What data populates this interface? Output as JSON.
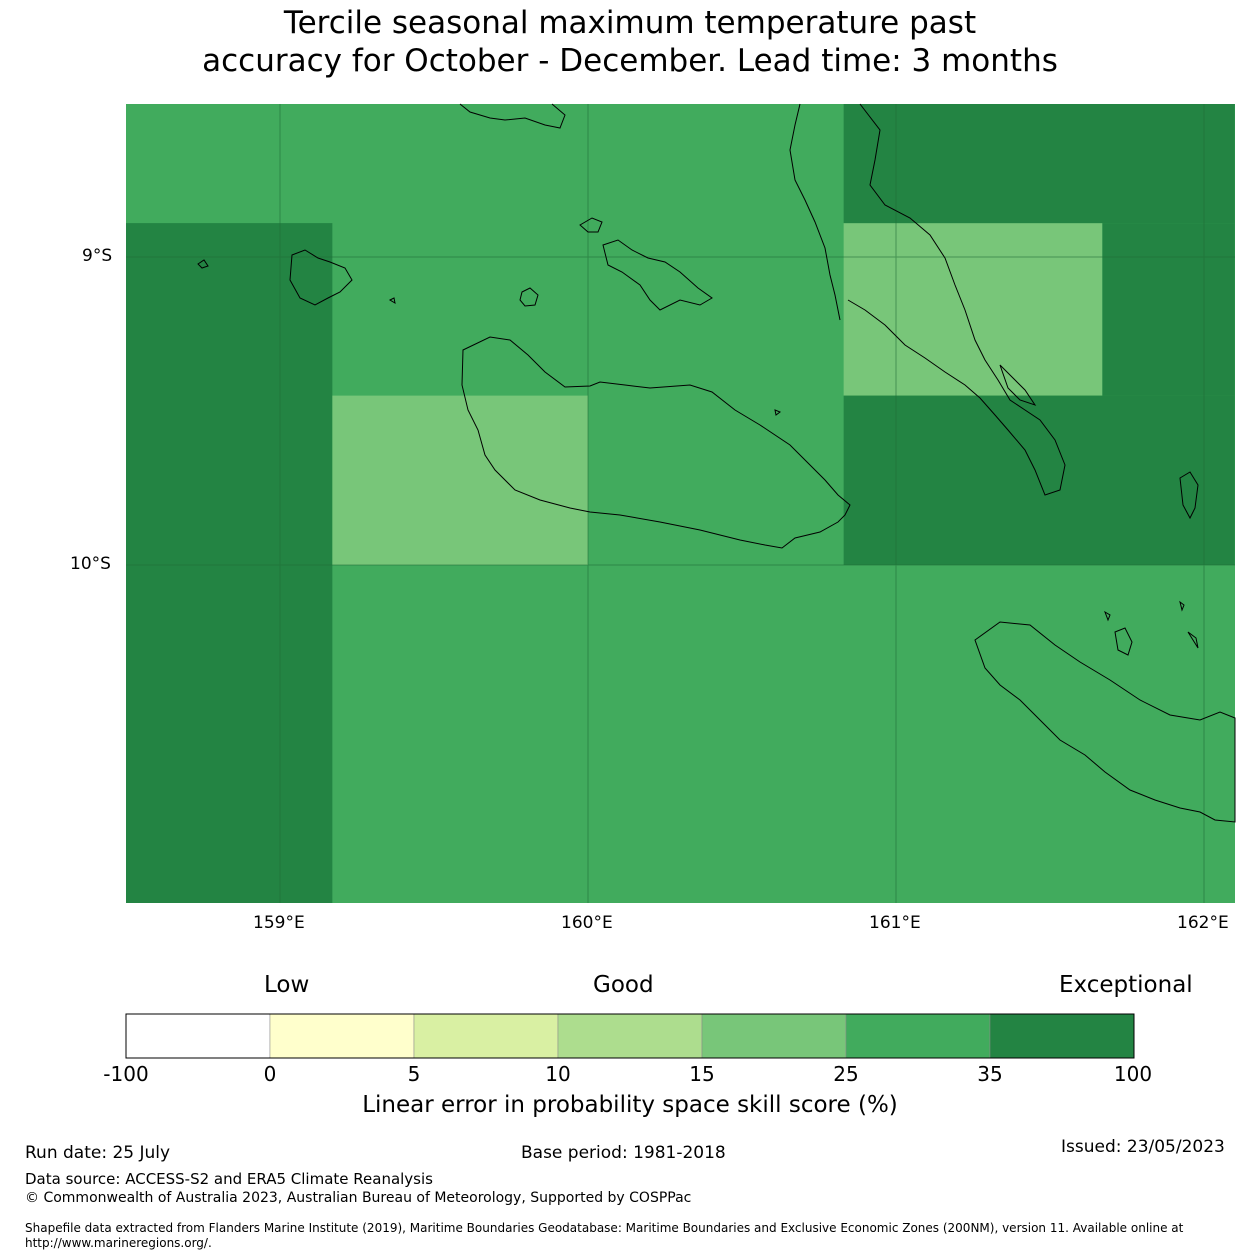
{
  "title": {
    "line1": "Tercile seasonal maximum temperature past",
    "line2": "accuracy for October - December. Lead time: 3 months"
  },
  "map": {
    "lat_labels": [
      "9°S",
      "10°S"
    ],
    "lon_labels": [
      "159°E",
      "160°E",
      "161°E",
      "162°E"
    ],
    "ocean_color": "#41ab5d",
    "coastline_color": "#000000"
  },
  "chart_data": {
    "type": "heatmap",
    "lon_range": [
      158.5,
      162.1
    ],
    "lat_range": [
      -11.1,
      -8.6
    ],
    "cells": [
      {
        "lon": [
          158.5,
          159.17
        ],
        "lat": [
          -11.1,
          -8.89
        ],
        "category": "35-100"
      },
      {
        "lon": [
          159.17,
          160.0
        ],
        "lat": [
          -9.45,
          -10.0
        ],
        "category": "15-25"
      },
      {
        "lon": [
          160.83,
          161.67
        ],
        "lat": [
          -8.89,
          -9.45
        ],
        "category": "15-25"
      },
      {
        "lon": [
          160.83,
          162.1
        ],
        "lat": [
          -8.5,
          -8.89
        ],
        "category": "35-100"
      },
      {
        "lon": [
          161.67,
          162.1
        ],
        "lat": [
          -8.89,
          -9.45
        ],
        "category": "35-100"
      },
      {
        "lon": [
          160.83,
          162.1
        ],
        "lat": [
          -9.45,
          -10.0
        ],
        "category": "35-100"
      }
    ],
    "default_category": "25-35"
  },
  "colorbar": {
    "categories": [
      "Low",
      "Good",
      "Exceptional"
    ],
    "ticks": [
      "-100",
      "0",
      "5",
      "10",
      "15",
      "25",
      "35",
      "100"
    ],
    "colors": [
      "#ffffff",
      "#ffffcc",
      "#d9f0a3",
      "#addd8e",
      "#78c679",
      "#41ab5d",
      "#238443"
    ],
    "label": "Linear error in probability space skill score (%)"
  },
  "footer": {
    "run_date": "Run date: 25 July",
    "base_period": "Base period: 1981-2018",
    "issued": "Issued: 23/05/2023",
    "data_source": "Data source: ACCESS-S2 and ERA5 Climate Reanalysis",
    "copyright": "© Commonwealth of Australia 2023, Australian Bureau of Meteorology, Supported by COSPPac",
    "shapefile_line1": "Shapefile data extracted from Flanders Marine Institute (2019), Maritime Boundaries Geodatabase: Maritime Boundaries and Exclusive Economic Zones (200NM), version 11. Available online at",
    "shapefile_line2": "http://www.marineregions.org/."
  }
}
